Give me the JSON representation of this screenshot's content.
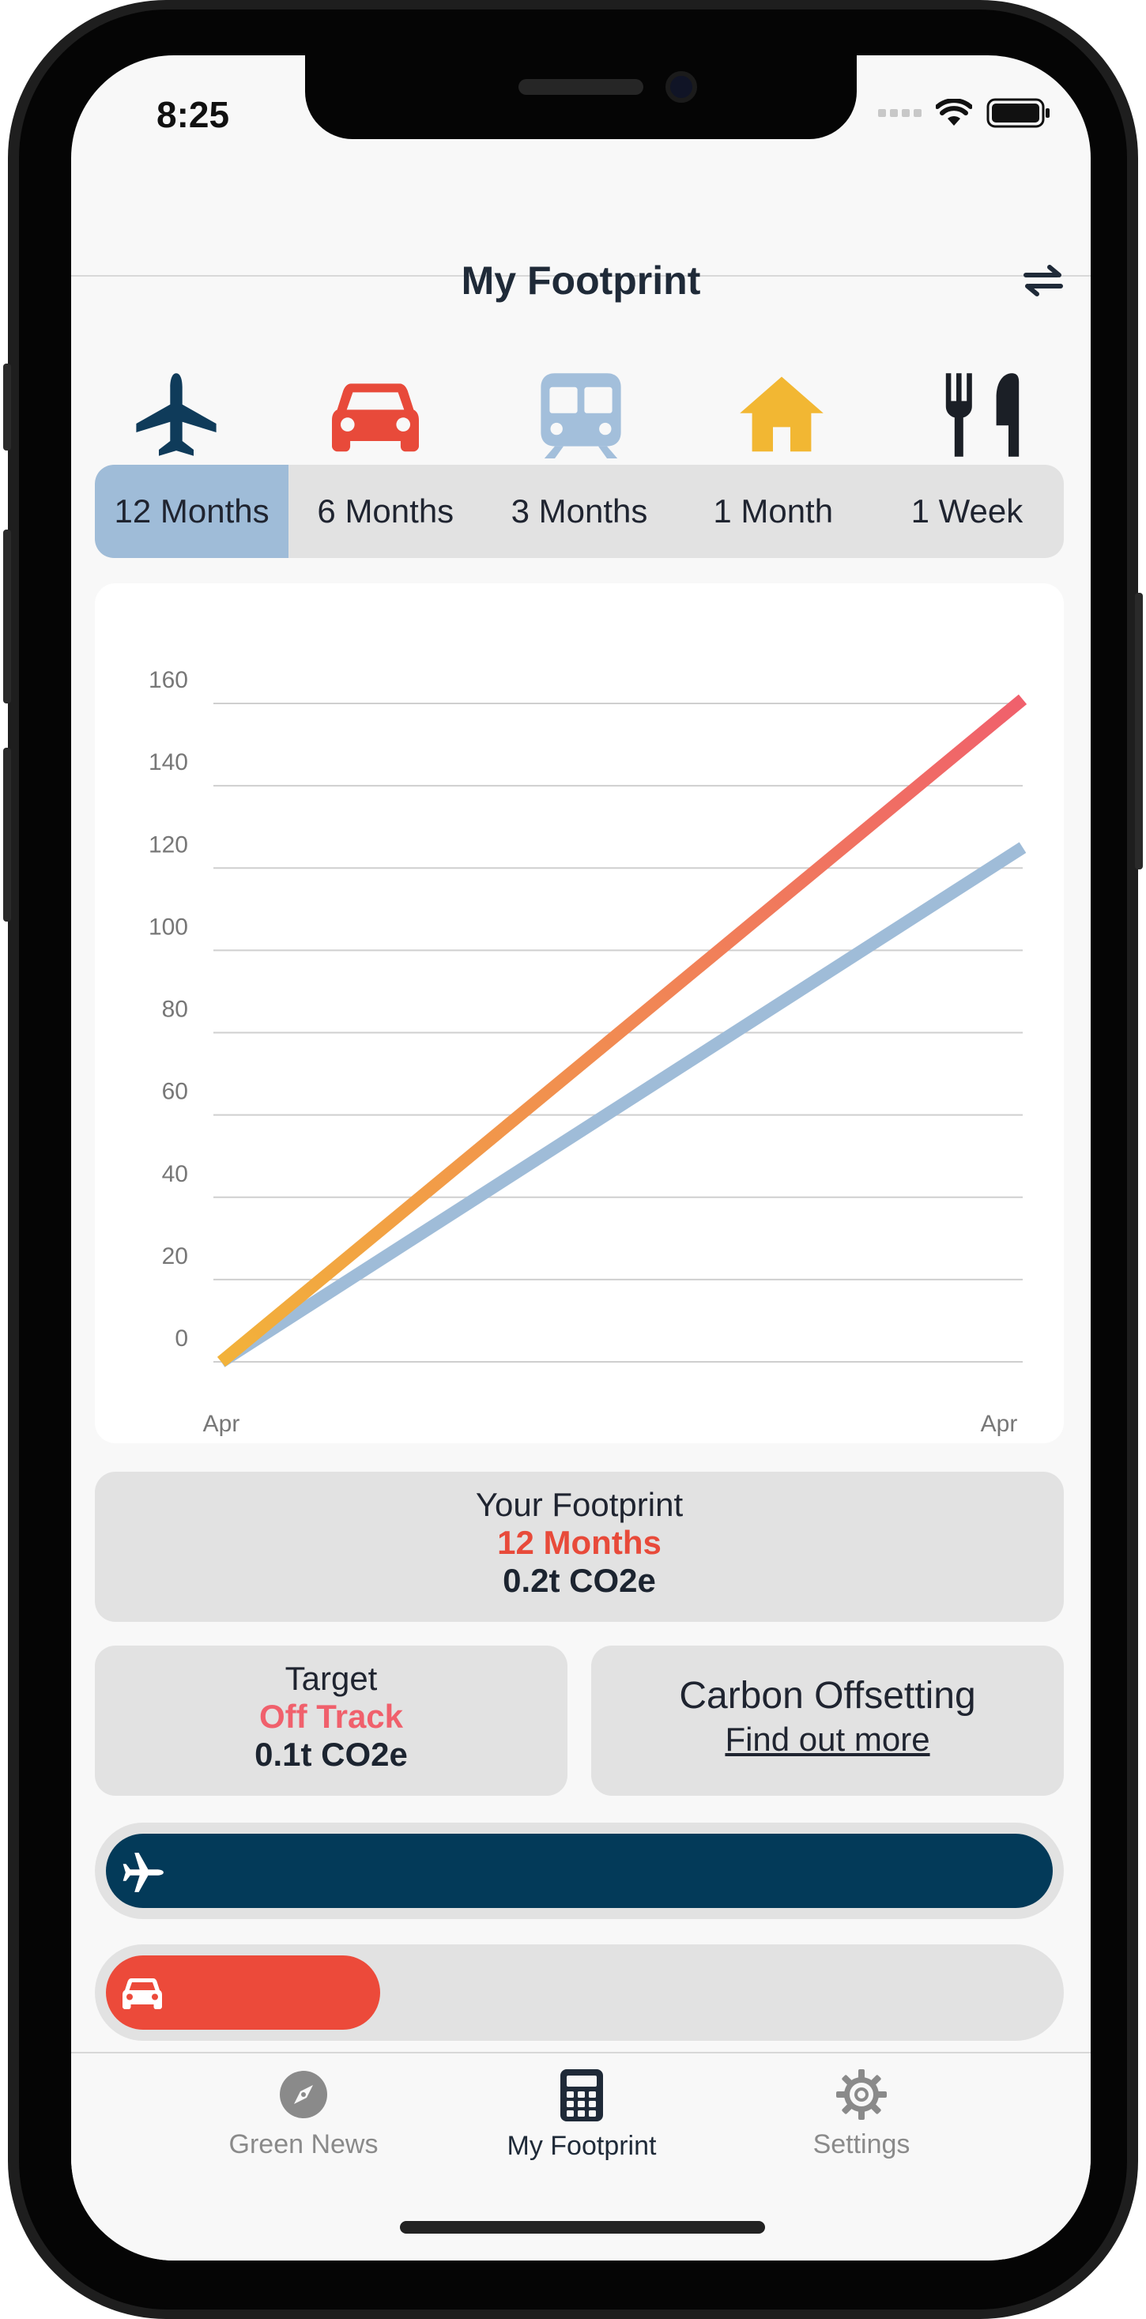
{
  "status_bar": {
    "time": "8:25"
  },
  "header": {
    "title": "My Footprint"
  },
  "categories": [
    {
      "name": "flights",
      "icon": "airplane-icon",
      "color": "#0f3b5a"
    },
    {
      "name": "car",
      "icon": "car-icon",
      "color": "#e84a3a"
    },
    {
      "name": "train",
      "icon": "train-icon",
      "color": "#a3bfdb"
    },
    {
      "name": "home",
      "icon": "home-icon",
      "color": "#f2b733"
    },
    {
      "name": "food",
      "icon": "utensils-icon",
      "color": "#1b1f26"
    }
  ],
  "periods": {
    "selected": "12 Months",
    "items": [
      "12 Months",
      "6 Months",
      "3 Months",
      "1 Month",
      "1 Week"
    ]
  },
  "chart_data": {
    "type": "line",
    "x": [
      "Apr",
      "Apr"
    ],
    "xlabel": "",
    "ylabel": "",
    "ylim": [
      0,
      160
    ],
    "yticks": [
      0,
      20,
      40,
      60,
      80,
      100,
      120,
      140,
      160
    ],
    "grid": true,
    "series": [
      {
        "values": [
          0,
          161
        ],
        "color": "#f0606c",
        "gradient_start": "#f2b23a"
      },
      {
        "values": [
          0,
          125
        ],
        "color": "#9fbcd8"
      }
    ]
  },
  "footprint": {
    "label": "Your Footprint",
    "period": "12 Months",
    "value": "0.2t CO2e",
    "period_color": "#e84a3a"
  },
  "target": {
    "label": "Target",
    "status": "Off Track",
    "value": "0.1t CO2e",
    "status_color": "#f0606c"
  },
  "offsetting": {
    "title": "Carbon Offsetting",
    "link": "Find out more"
  },
  "breakdown": [
    {
      "icon": "airplane-icon",
      "color": "#033a59",
      "fraction": 1.0
    },
    {
      "icon": "car-icon",
      "color": "#ec4a3a",
      "fraction": 0.29
    }
  ],
  "tab_bar": {
    "items": [
      {
        "label": "Green News",
        "icon": "compass-icon",
        "active": false
      },
      {
        "label": "My Footprint",
        "icon": "calculator-icon",
        "active": true
      },
      {
        "label": "Settings",
        "icon": "gear-icon",
        "active": false
      }
    ],
    "active_color": "#1f2a38",
    "inactive_color": "#8a8a8a"
  }
}
